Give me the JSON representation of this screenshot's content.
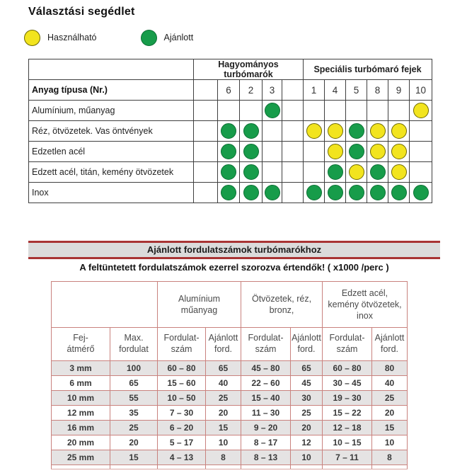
{
  "title": "Választási segédlet",
  "legend": {
    "usable_label": "Használható",
    "recommended_label": "Ajánlott"
  },
  "colors": {
    "usable_yellow": "#f2e41e",
    "recommended_green": "#179c4a",
    "selection_table_border": "#3f3f3f",
    "banner_red": "#a83434",
    "banner_background": "#dbdbdb",
    "speed_table_border": "#c9827e",
    "shaded_row": "#e5e3e3"
  },
  "selection_table": {
    "group1": "Hagyományos turbómarók",
    "group2": "Speciális turbómaró fejek",
    "material_header": "Anyag típusa (Nr.)",
    "group1_columns": [
      "6",
      "2",
      "3"
    ],
    "group2_columns": [
      "1",
      "4",
      "5",
      "8",
      "9",
      "10"
    ],
    "rows": [
      {
        "label": "Alumínium, műanyag",
        "marks": [
          "",
          "",
          "recommended",
          "",
          "",
          "",
          "",
          "",
          "usable"
        ]
      },
      {
        "label": "Réz, ötvözetek. Vas öntvények",
        "marks": [
          "recommended",
          "recommended",
          "",
          "usable",
          "usable",
          "recommended",
          "usable",
          "usable",
          ""
        ]
      },
      {
        "label": "Edzetlen acél",
        "marks": [
          "recommended",
          "recommended",
          "",
          "",
          "usable",
          "recommended",
          "usable",
          "usable",
          ""
        ]
      },
      {
        "label": "Edzett acél, titán, kemény ötvözetek",
        "marks": [
          "recommended",
          "recommended",
          "",
          "",
          "recommended",
          "usable",
          "recommended",
          "usable",
          ""
        ]
      },
      {
        "label": "Inox",
        "marks": [
          "recommended",
          "recommended",
          "recommended",
          "recommended",
          "recommended",
          "recommended",
          "recommended",
          "recommended",
          "recommended"
        ]
      }
    ]
  },
  "banner": {
    "title": "Ajánlott fordulatszámok turbómarókhoz"
  },
  "note": "A feltüntetett fordulatszámok ezerrel szorozva értendők! ( x1000 /perc )",
  "speed_table": {
    "group_headers": [
      "Alumínium\nműanyag",
      "Ötvözetek, réz,\nbronz,",
      "Edzett acél,\nkemény ötvözetek,\ninox"
    ],
    "col_headers": [
      "Fej-\nátmérő",
      "Max.\nfordulat",
      "Fordulat-\nszám",
      "Ajánlott\nford.",
      "Fordulat-\nszám",
      "Ajánlott\nford.",
      "Fordulat-\nszám",
      "Ajánlott\nford."
    ],
    "rows": [
      [
        "3 mm",
        "100",
        "60 – 80",
        "65",
        "45 – 80",
        "65",
        "60 – 80",
        "80"
      ],
      [
        "6 mm",
        "65",
        "15 – 60",
        "40",
        "22 – 60",
        "45",
        "30 – 45",
        "40"
      ],
      [
        "10 mm",
        "55",
        "10 – 50",
        "25",
        "15 – 40",
        "30",
        "19 – 30",
        "25"
      ],
      [
        "12 mm",
        "35",
        "7 – 30",
        "20",
        "11 – 30",
        "25",
        "15 – 22",
        "20"
      ],
      [
        "16 mm",
        "25",
        "6 – 20",
        "15",
        "9 – 20",
        "20",
        "12 – 18",
        "15"
      ],
      [
        "20 mm",
        "20",
        "5 – 17",
        "10",
        "8 – 17",
        "12",
        "10 – 15",
        "10"
      ],
      [
        "25 mm",
        "15",
        "4 – 13",
        "8",
        "8 – 13",
        "10",
        "7 – 11",
        "8"
      ]
    ]
  }
}
